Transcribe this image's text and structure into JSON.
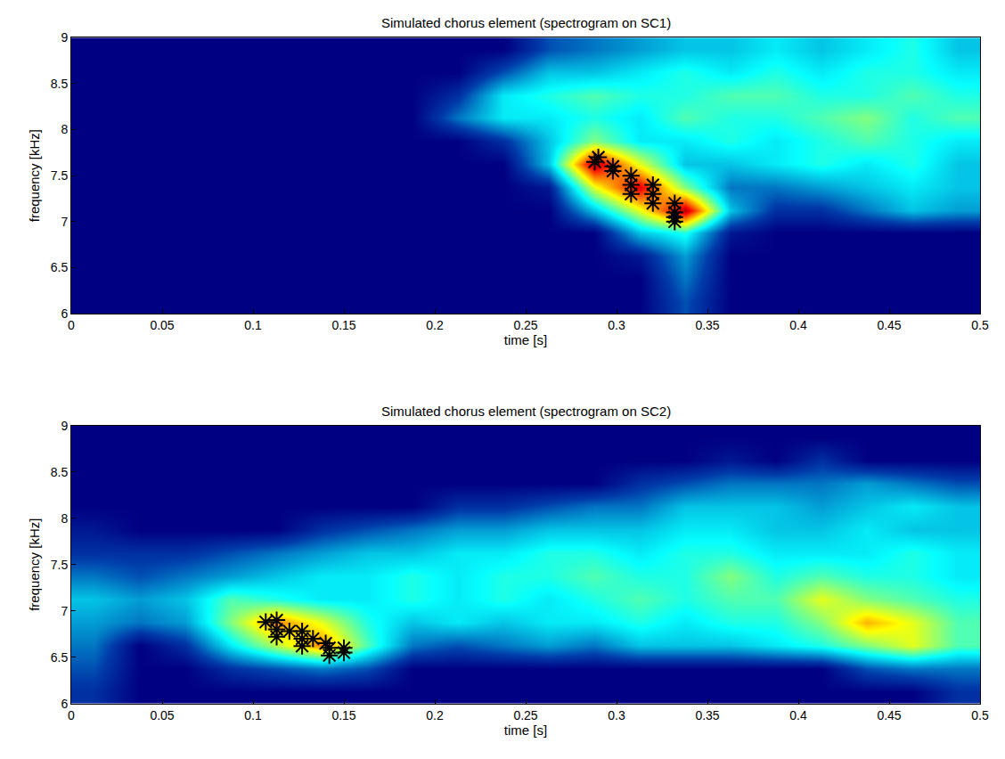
{
  "chart_data": [
    {
      "type": "heatmap",
      "title": "Simulated chorus element (spectrogram on SC1)",
      "x_label": "time [s]",
      "y_label": "frequency [kHz]",
      "xlim": [
        0,
        0.5
      ],
      "ylim": [
        6,
        9
      ],
      "xticks": [
        0,
        0.05,
        0.1,
        0.15,
        0.2,
        0.25,
        0.3,
        0.35,
        0.4,
        0.45,
        0.5
      ],
      "yticks": [
        6,
        6.5,
        7,
        7.5,
        8,
        8.5,
        9
      ],
      "grid": false,
      "x": [
        0.0125,
        0.0375,
        0.0625,
        0.0875,
        0.1125,
        0.1375,
        0.1625,
        0.1875,
        0.2125,
        0.2375,
        0.2625,
        0.2875,
        0.3125,
        0.3375,
        0.3625,
        0.3875,
        0.4125,
        0.4375,
        0.4625,
        0.4875
      ],
      "y": [
        6.125,
        6.375,
        6.625,
        6.875,
        7.125,
        7.375,
        7.625,
        7.875,
        8.125,
        8.375,
        8.625,
        8.875
      ],
      "zlim": [
        0,
        1
      ],
      "z": [
        [
          0,
          0,
          0,
          0,
          0,
          0,
          0,
          0,
          0,
          0,
          0,
          0,
          0,
          0.15,
          0,
          0,
          0,
          0,
          0,
          0
        ],
        [
          0,
          0,
          0,
          0,
          0,
          0,
          0,
          0,
          0,
          0,
          0,
          0,
          0,
          0.2,
          0,
          0,
          0,
          0,
          0,
          0
        ],
        [
          0,
          0,
          0,
          0,
          0,
          0,
          0,
          0,
          0,
          0,
          0,
          0,
          0.05,
          0.25,
          0,
          0,
          0,
          0,
          0,
          0
        ],
        [
          0,
          0,
          0,
          0,
          0,
          0,
          0,
          0,
          0,
          0,
          0,
          0,
          0.3,
          0.4,
          0.05,
          0,
          0,
          0,
          0,
          0
        ],
        [
          0,
          0,
          0,
          0,
          0,
          0,
          0,
          0,
          0,
          0,
          0,
          0.3,
          0.6,
          0.95,
          0.3,
          0.1,
          0.1,
          0.2,
          0.3,
          0.25
        ],
        [
          0,
          0,
          0,
          0,
          0,
          0,
          0,
          0,
          0,
          0,
          0.05,
          0.6,
          0.9,
          0.5,
          0.2,
          0.2,
          0.25,
          0.3,
          0.35,
          0.3
        ],
        [
          0,
          0,
          0,
          0,
          0,
          0,
          0,
          0,
          0,
          0,
          0.3,
          0.95,
          0.6,
          0.3,
          0.3,
          0.35,
          0.4,
          0.35,
          0.4,
          0.3
        ],
        [
          0,
          0,
          0,
          0,
          0,
          0,
          0,
          0,
          0,
          0.1,
          0.3,
          0.5,
          0.35,
          0.35,
          0.4,
          0.35,
          0.4,
          0.45,
          0.4,
          0.35
        ],
        [
          0,
          0,
          0,
          0,
          0,
          0,
          0,
          0,
          0.2,
          0.35,
          0.35,
          0.4,
          0.35,
          0.45,
          0.4,
          0.4,
          0.45,
          0.5,
          0.4,
          0.45
        ],
        [
          0,
          0,
          0,
          0,
          0,
          0,
          0,
          0,
          0.1,
          0.35,
          0.4,
          0.45,
          0.4,
          0.4,
          0.45,
          0.45,
          0.4,
          0.4,
          0.45,
          0.4
        ],
        [
          0,
          0,
          0,
          0,
          0,
          0,
          0,
          0,
          0,
          0.15,
          0.3,
          0.3,
          0.35,
          0.4,
          0.35,
          0.4,
          0.35,
          0.4,
          0.4,
          0.35
        ],
        [
          0,
          0,
          0,
          0,
          0,
          0,
          0,
          0,
          0,
          0,
          0.15,
          0.2,
          0.25,
          0.3,
          0.3,
          0.35,
          0.3,
          0.35,
          0.4,
          0.3
        ]
      ],
      "points": {
        "marker": "asterisk",
        "color": "#000000",
        "x": [
          0.288,
          0.29,
          0.298,
          0.298,
          0.308,
          0.308,
          0.308,
          0.32,
          0.32,
          0.32,
          0.332,
          0.332,
          0.332,
          0.332
        ],
        "y": [
          7.65,
          7.7,
          7.6,
          7.55,
          7.5,
          7.4,
          7.3,
          7.4,
          7.3,
          7.2,
          7.2,
          7.1,
          7.05,
          7.0
        ]
      }
    },
    {
      "type": "heatmap",
      "title": "Simulated chorus element (spectrogram on SC2)",
      "x_label": "time [s]",
      "y_label": "frequency [kHz]",
      "xlim": [
        0,
        0.5
      ],
      "ylim": [
        6,
        9
      ],
      "xticks": [
        0,
        0.05,
        0.1,
        0.15,
        0.2,
        0.25,
        0.3,
        0.35,
        0.4,
        0.45,
        0.5
      ],
      "yticks": [
        6,
        6.5,
        7,
        7.5,
        8,
        8.5,
        9
      ],
      "grid": false,
      "x": [
        0.0125,
        0.0375,
        0.0625,
        0.0875,
        0.1125,
        0.1375,
        0.1625,
        0.1875,
        0.2125,
        0.2375,
        0.2625,
        0.2875,
        0.3125,
        0.3375,
        0.3625,
        0.3875,
        0.4125,
        0.4375,
        0.4625,
        0.4875
      ],
      "y": [
        6.125,
        6.375,
        6.625,
        6.875,
        7.125,
        7.375,
        7.625,
        7.875,
        8.125,
        8.375,
        8.625,
        8.875
      ],
      "zlim": [
        0,
        1
      ],
      "z": [
        [
          0.1,
          0,
          0,
          0,
          0,
          0,
          0,
          0,
          0,
          0,
          0,
          0,
          0,
          0,
          0,
          0,
          0,
          0,
          0,
          0.1
        ],
        [
          0.15,
          0,
          0,
          0.1,
          0.15,
          0.2,
          0.15,
          0,
          0,
          0,
          0,
          0,
          0,
          0,
          0,
          0,
          0,
          0.15,
          0.2,
          0.2
        ],
        [
          0.2,
          0,
          0.1,
          0.35,
          0.55,
          0.75,
          0.45,
          0.2,
          0.15,
          0.2,
          0.25,
          0.2,
          0.3,
          0.3,
          0.3,
          0.35,
          0.4,
          0.5,
          0.6,
          0.45
        ],
        [
          0.25,
          0.2,
          0.25,
          0.5,
          0.75,
          0.6,
          0.4,
          0.3,
          0.35,
          0.3,
          0.35,
          0.35,
          0.4,
          0.35,
          0.4,
          0.4,
          0.5,
          0.7,
          0.6,
          0.45
        ],
        [
          0.3,
          0.25,
          0.3,
          0.45,
          0.4,
          0.35,
          0.35,
          0.4,
          0.35,
          0.4,
          0.35,
          0.4,
          0.45,
          0.4,
          0.45,
          0.45,
          0.6,
          0.5,
          0.45,
          0.4
        ],
        [
          0.2,
          0.15,
          0.2,
          0.25,
          0.3,
          0.35,
          0.35,
          0.4,
          0.35,
          0.4,
          0.4,
          0.45,
          0.4,
          0.4,
          0.5,
          0.4,
          0.45,
          0.4,
          0.4,
          0.35
        ],
        [
          0.1,
          0.1,
          0.1,
          0.15,
          0.2,
          0.25,
          0.3,
          0.3,
          0.35,
          0.35,
          0.4,
          0.4,
          0.35,
          0.4,
          0.4,
          0.35,
          0.35,
          0.35,
          0.4,
          0.35
        ],
        [
          0.05,
          0,
          0,
          0,
          0,
          0.1,
          0.15,
          0.2,
          0.25,
          0.25,
          0.3,
          0.3,
          0.3,
          0.35,
          0.35,
          0.3,
          0.3,
          0.35,
          0.3,
          0.3
        ],
        [
          0,
          0,
          0,
          0,
          0,
          0,
          0,
          0,
          0.1,
          0.1,
          0.15,
          0.2,
          0.2,
          0.3,
          0.3,
          0.3,
          0.25,
          0.3,
          0.35,
          0.3
        ],
        [
          0,
          0,
          0,
          0,
          0,
          0,
          0,
          0,
          0,
          0,
          0,
          0,
          0.1,
          0.15,
          0.2,
          0.2,
          0.2,
          0.25,
          0.2,
          0.15
        ],
        [
          0,
          0,
          0,
          0,
          0,
          0,
          0,
          0,
          0,
          0,
          0,
          0,
          0,
          0,
          0.05,
          0,
          0.1,
          0,
          0,
          0
        ],
        [
          0,
          0,
          0,
          0,
          0,
          0,
          0,
          0,
          0,
          0,
          0,
          0,
          0,
          0,
          0,
          0,
          0,
          0,
          0,
          0
        ]
      ],
      "points": {
        "marker": "asterisk",
        "color": "#000000",
        "x": [
          0.107,
          0.113,
          0.113,
          0.113,
          0.12,
          0.127,
          0.127,
          0.127,
          0.133,
          0.14,
          0.142,
          0.142,
          0.15,
          0.15
        ],
        "y": [
          6.88,
          6.9,
          6.8,
          6.72,
          6.78,
          6.78,
          6.7,
          6.62,
          6.7,
          6.65,
          6.6,
          6.52,
          6.6,
          6.55
        ]
      }
    }
  ]
}
